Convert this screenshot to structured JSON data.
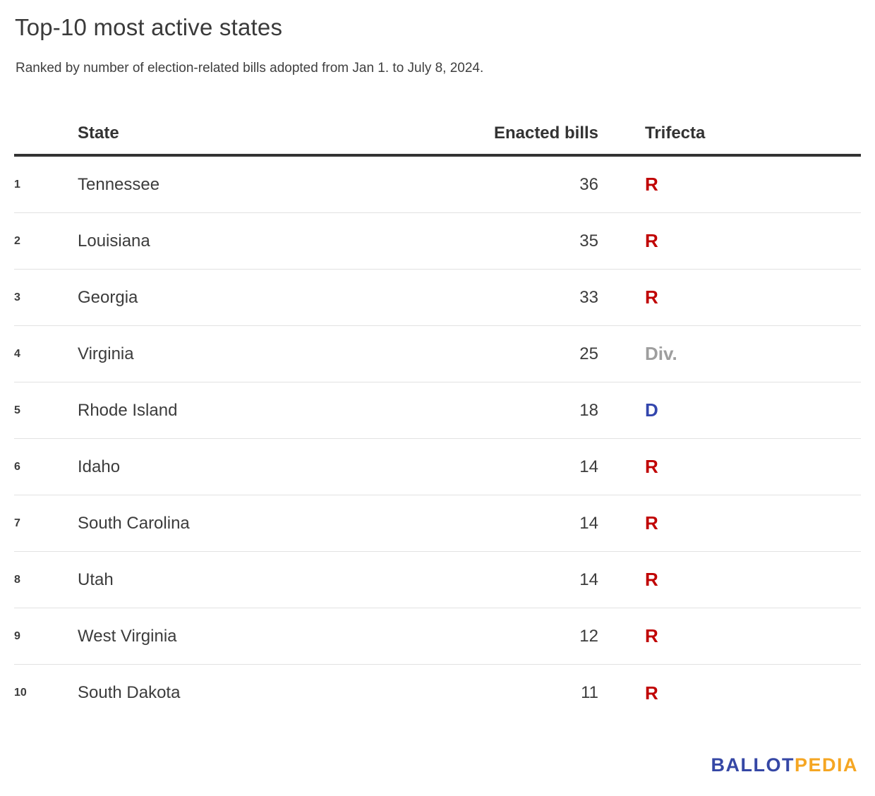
{
  "chart_data": {
    "type": "table",
    "title": "Top-10 most active states",
    "subtitle": "Ranked by number of election-related bills adopted from Jan 1. to July 8, 2024.",
    "columns": [
      "State",
      "Enacted bills",
      "Trifecta"
    ],
    "rows": [
      {
        "rank": 1,
        "state": "Tennessee",
        "enacted_bills": 36,
        "trifecta": "R"
      },
      {
        "rank": 2,
        "state": "Louisiana",
        "enacted_bills": 35,
        "trifecta": "R"
      },
      {
        "rank": 3,
        "state": "Georgia",
        "enacted_bills": 33,
        "trifecta": "R"
      },
      {
        "rank": 4,
        "state": "Virginia",
        "enacted_bills": 25,
        "trifecta": "Div."
      },
      {
        "rank": 5,
        "state": "Rhode Island",
        "enacted_bills": 18,
        "trifecta": "D"
      },
      {
        "rank": 6,
        "state": "Idaho",
        "enacted_bills": 14,
        "trifecta": "R"
      },
      {
        "rank": 7,
        "state": "South Carolina",
        "enacted_bills": 14,
        "trifecta": "R"
      },
      {
        "rank": 8,
        "state": "Utah",
        "enacted_bills": 14,
        "trifecta": "R"
      },
      {
        "rank": 9,
        "state": "West Virginia",
        "enacted_bills": 12,
        "trifecta": "R"
      },
      {
        "rank": 10,
        "state": "South Dakota",
        "enacted_bills": 11,
        "trifecta": "R"
      }
    ],
    "legend": {
      "R_color": "#c00000",
      "D_color": "#3346ad",
      "Div_color": "#9e9e9e"
    }
  },
  "logo": {
    "part_blue": "BALLOT",
    "part_orange": "PEDIA",
    "blue_color": "#3547a5",
    "orange_color": "#f5a623"
  }
}
